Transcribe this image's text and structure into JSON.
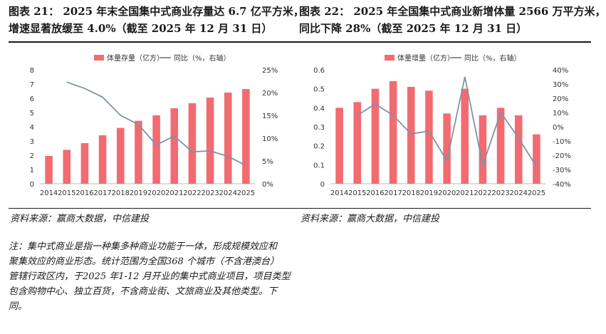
{
  "colors": {
    "bar": "#f26b70",
    "line": "#7f94a6",
    "rule": "#1a1a1a",
    "grid": "#dddddd"
  },
  "left": {
    "title_line1": "图表 21：  2025 年末全国集中式商业存量达 6.7 亿平方米，",
    "title_line2": "增速显著放缓至 4.0%（截至 2025 年 12 月 31 日）",
    "source": "资料来源：赢商大数据，中信建投"
  },
  "right": {
    "title_line1": "图表 22：  2025 年全国集中式商业新增体量 2566 万平方米，",
    "title_line2": "同比下降 28%（截至 2025 年 12 月 31 日）",
    "source": "资料来源：赢商大数据，中信建投"
  },
  "note": "注：集中式商业是指一种集多种商业功能于一体，形成规模效应和\n聚集效应的商业形态。统计范围为全国368 个城市（不含港澳台）\n管辖行政区内，于2025 年1-12 月开业的集中式商业项目，项目类型\n包含购物中心、独立百货，不含商业街、文旅商业及其他类型。下\n同。",
  "chart_data": [
    {
      "type": "bar",
      "categories": [
        "2014",
        "2015",
        "2016",
        "2017",
        "2018",
        "2019",
        "2020",
        "2021",
        "2022",
        "2023",
        "2024",
        "2025"
      ],
      "series": [
        {
          "name": "体量存量（亿方）",
          "type": "bar",
          "axis": "left",
          "values": [
            1.95,
            2.38,
            2.85,
            3.4,
            3.92,
            4.42,
            4.8,
            5.3,
            5.65,
            6.05,
            6.4,
            6.65
          ]
        },
        {
          "name": "同比（%，右轴）",
          "type": "line",
          "axis": "right",
          "values": [
            null,
            22.3,
            20.9,
            19.0,
            15.0,
            13.0,
            8.5,
            10.5,
            7.0,
            7.2,
            6.0,
            4.0
          ]
        }
      ],
      "y_left": {
        "range": [
          0,
          8
        ],
        "ticks": [
          "0",
          "1",
          "2",
          "3",
          "4",
          "5",
          "6",
          "7",
          "8"
        ]
      },
      "y_right": {
        "range": [
          0,
          25
        ],
        "ticks": [
          "0%",
          "5%",
          "10%",
          "15%",
          "20%",
          "25%"
        ]
      },
      "legend": "top-center",
      "grid": false
    },
    {
      "type": "bar",
      "categories": [
        "2014",
        "2015",
        "2016",
        "2017",
        "2018",
        "2019",
        "2020",
        "2021",
        "2022",
        "2023",
        "2024",
        "2025"
      ],
      "series": [
        {
          "name": "体量增量（亿方）",
          "type": "bar",
          "axis": "left",
          "values": [
            0.4,
            0.43,
            0.5,
            0.54,
            0.51,
            0.49,
            0.37,
            0.5,
            0.36,
            0.4,
            0.36,
            0.26
          ]
        },
        {
          "name": "同比（%，右轴）",
          "type": "line",
          "axis": "right",
          "values": [
            null,
            8,
            16,
            8,
            -5,
            -3,
            -24,
            35,
            -27,
            10,
            -8,
            -28
          ]
        }
      ],
      "y_left": {
        "range": [
          0,
          0.6
        ],
        "ticks": [
          "0",
          "0.1",
          "0.2",
          "0.3",
          "0.4",
          "0.5",
          "0.6"
        ]
      },
      "y_right": {
        "range": [
          -40,
          40
        ],
        "ticks": [
          "-40%",
          "-30%",
          "-20%",
          "-10%",
          "0%",
          "10%",
          "20%",
          "30%",
          "40%"
        ]
      },
      "legend": "top-center",
      "grid": false
    }
  ]
}
